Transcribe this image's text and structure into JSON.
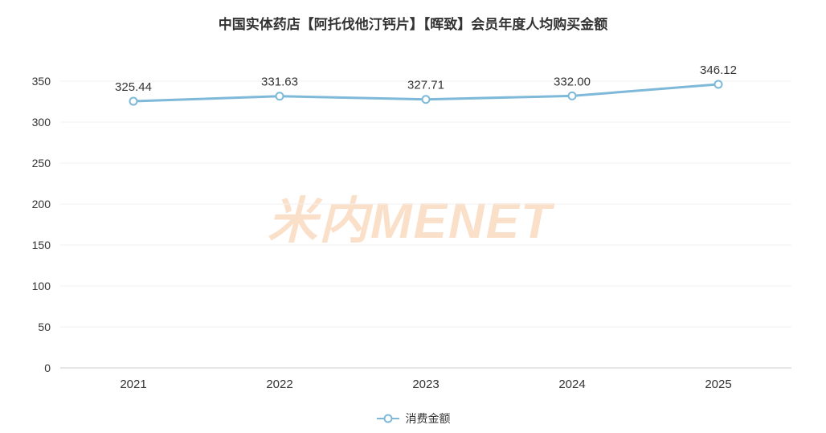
{
  "title": "中国实体药店【阿托伐他汀钙片】【晖致】会员年度人均购买金额",
  "watermark": "米内MENET",
  "legend": {
    "label": "消费金额"
  },
  "colors": {
    "line": "#7eb9d9",
    "point_fill": "#ffffff",
    "label": "#333333",
    "tick": "#333333",
    "axis": "#cccccc",
    "grid": "#f0f0f0",
    "watermark": "#f5b98a",
    "title": "#333333"
  },
  "chart_data": {
    "type": "line",
    "title": "中国实体药店【阿托伐他汀钙片】【晖致】会员年度人均购买金额",
    "categories": [
      "2021",
      "2022",
      "2023",
      "2024",
      "2025"
    ],
    "series": [
      {
        "name": "消费金额",
        "values": [
          325.44,
          331.63,
          327.71,
          332.0,
          346.12
        ]
      }
    ],
    "point_labels": [
      "325.44",
      "331.63",
      "327.71",
      "332.00",
      "346.12"
    ],
    "xlabel": "",
    "ylabel": "",
    "ylim": [
      0,
      350
    ],
    "yticks": [
      0,
      50,
      100,
      150,
      200,
      250,
      300,
      350
    ],
    "grid": true,
    "legend_position": "bottom"
  }
}
